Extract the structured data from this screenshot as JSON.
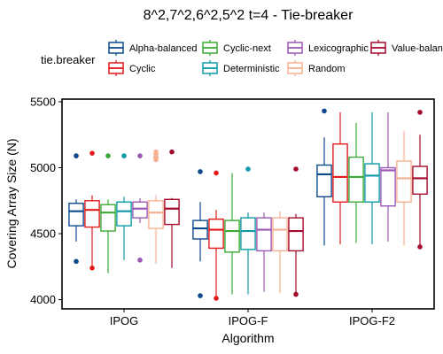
{
  "chart_data": {
    "type": "boxplot",
    "title": "8^2,7^2,6^2,5^2 t=4 - Tie-breaker",
    "xlabel": "Algorithm",
    "ylabel": "Covering Array Size (N)",
    "ylim": [
      3930,
      5520
    ],
    "yticks": [
      4000,
      4500,
      5000,
      5500
    ],
    "grid": false,
    "legend": {
      "title": "tie.breaker",
      "placement": "top",
      "entries": [
        {
          "label": "Alpha-balanced",
          "color": "#0c4a8c"
        },
        {
          "label": "Cyclic-next",
          "color": "#3aaa35"
        },
        {
          "label": "Lexicographic",
          "color": "#9b59b6"
        },
        {
          "label": "Value-balanced",
          "color": "#a50a2d"
        },
        {
          "label": "Cyclic",
          "color": "#e31a1c"
        },
        {
          "label": "Deterministic",
          "color": "#0e9aa7"
        },
        {
          "label": "Random",
          "color": "#f5b093"
        }
      ]
    },
    "categories": [
      "IPOG",
      "IPOG-F",
      "IPOG-F2"
    ],
    "series_order": [
      "Alpha-balanced",
      "Cyclic",
      "Cyclic-next",
      "Deterministic",
      "Lexicographic",
      "Random",
      "Value-balanced"
    ],
    "series": [
      {
        "name": "Alpha-balanced",
        "color": "#0c4a8c",
        "boxes": [
          {
            "min": 4440,
            "q1": 4560,
            "median": 4670,
            "q3": 4730,
            "max": 4760,
            "outliers": [
              5090,
              4290
            ]
          },
          {
            "min": 4290,
            "q1": 4460,
            "median": 4540,
            "q3": 4600,
            "max": 4740,
            "outliers": [
              4970,
              4030
            ]
          },
          {
            "min": 4410,
            "q1": 4780,
            "median": 4950,
            "q3": 5020,
            "max": 5230,
            "outliers": [
              5430
            ]
          }
        ]
      },
      {
        "name": "Cyclic",
        "color": "#e31a1c",
        "boxes": [
          {
            "min": 4240,
            "q1": 4550,
            "median": 4680,
            "q3": 4750,
            "max": 4790,
            "outliers": [
              5110,
              4240
            ]
          },
          {
            "min": 4010,
            "q1": 4390,
            "median": 4530,
            "q3": 4610,
            "max": 4680,
            "outliers": [
              4960,
              4010
            ]
          },
          {
            "min": 4420,
            "q1": 4740,
            "median": 4930,
            "q3": 5180,
            "max": 5420,
            "outliers": []
          }
        ]
      },
      {
        "name": "Cyclic-next",
        "color": "#3aaa35",
        "boxes": [
          {
            "min": 4200,
            "q1": 4520,
            "median": 4660,
            "q3": 4720,
            "max": 4760,
            "outliers": [
              5090
            ]
          },
          {
            "min": 4040,
            "q1": 4360,
            "median": 4520,
            "q3": 4600,
            "max": 4960,
            "outliers": []
          },
          {
            "min": 4430,
            "q1": 4740,
            "median": 4930,
            "q3": 5080,
            "max": 5340,
            "outliers": []
          }
        ]
      },
      {
        "name": "Deterministic",
        "color": "#0e9aa7",
        "boxes": [
          {
            "min": 4300,
            "q1": 4560,
            "median": 4670,
            "q3": 4740,
            "max": 4780,
            "outliers": [
              5090
            ]
          },
          {
            "min": 4040,
            "q1": 4380,
            "median": 4520,
            "q3": 4620,
            "max": 4660,
            "outliers": [
              4990
            ]
          },
          {
            "min": 4420,
            "q1": 4740,
            "median": 4940,
            "q3": 5030,
            "max": 5420,
            "outliers": []
          }
        ]
      },
      {
        "name": "Lexicographic",
        "color": "#9b59b6",
        "boxes": [
          {
            "min": 4580,
            "q1": 4620,
            "median": 4690,
            "q3": 4740,
            "max": 4770,
            "outliers": [
              5090,
              4300
            ]
          },
          {
            "min": 4060,
            "q1": 4370,
            "median": 4530,
            "q3": 4620,
            "max": 4660,
            "outliers": []
          },
          {
            "min": 4440,
            "q1": 4710,
            "median": 4980,
            "q3": 5000,
            "max": 5420,
            "outliers": []
          }
        ]
      },
      {
        "name": "Random",
        "color": "#f5b093",
        "boxes": [
          {
            "min": 4270,
            "q1": 4540,
            "median": 4660,
            "q3": 4750,
            "max": 4790,
            "outliers": [
              5060,
              5070,
              5080,
              5100,
              5120
            ]
          },
          {
            "min": 4050,
            "q1": 4370,
            "median": 4530,
            "q3": 4620,
            "max": 4670,
            "outliers": []
          },
          {
            "min": 4410,
            "q1": 4740,
            "median": 4920,
            "q3": 5050,
            "max": 5280,
            "outliers": []
          }
        ]
      },
      {
        "name": "Value-balanced",
        "color": "#a50a2d",
        "boxes": [
          {
            "min": 4240,
            "q1": 4570,
            "median": 4690,
            "q3": 4760,
            "max": 4770,
            "outliers": [
              5120
            ]
          },
          {
            "min": 4030,
            "q1": 4370,
            "median": 4520,
            "q3": 4620,
            "max": 4650,
            "outliers": [
              4990,
              4040
            ]
          },
          {
            "min": 4400,
            "q1": 4800,
            "median": 4920,
            "q3": 5010,
            "max": 5250,
            "outliers": [
              5420,
              4400
            ]
          }
        ]
      }
    ]
  }
}
